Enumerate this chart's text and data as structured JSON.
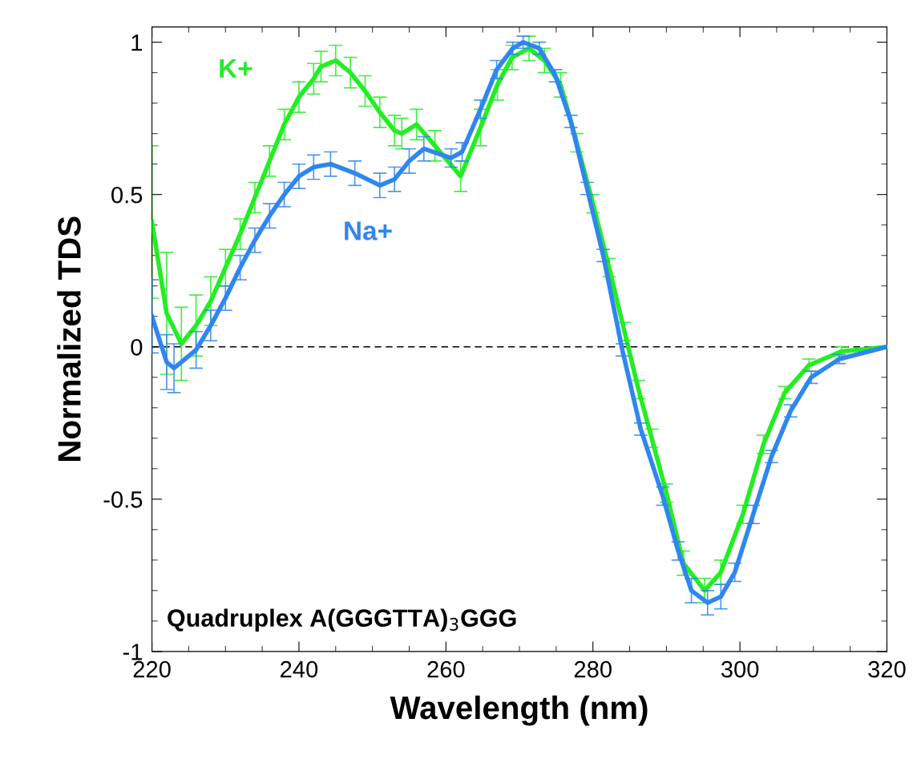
{
  "chart_data": {
    "type": "line",
    "xlabel": "Wavelength (nm)",
    "ylabel": "Normalized TDS",
    "xlim": [
      220,
      320
    ],
    "xticks": [
      220,
      240,
      260,
      280,
      300,
      320
    ],
    "ylim": [
      -1,
      1.05
    ],
    "yticks": [
      -1,
      -0.5,
      0,
      0.5,
      1
    ],
    "grid": false,
    "legend": false,
    "marker": "none",
    "line_style": "solid",
    "ref_lines": [
      {
        "axis": "y",
        "value": 0,
        "color": "#000000",
        "line_style": "dashed"
      }
    ],
    "annotations": [
      "Quadruplex A(GGGTTA)$_{3}$GGG"
    ],
    "series": [
      {
        "name": "K+",
        "color": "#22ee22",
        "x": [
          220,
          222,
          224,
          226,
          228,
          230,
          232,
          234,
          236,
          238,
          240,
          242,
          243,
          245,
          247,
          249,
          251,
          253,
          254,
          256,
          258.5,
          262,
          264.7,
          267,
          269,
          271.3,
          273.4,
          275.6,
          277.8,
          280,
          282.2,
          284.3,
          286.2,
          288,
          290,
          292.3,
          295.2,
          297.4,
          300.4,
          303.2,
          306.1,
          309.4,
          313.8,
          320
        ],
        "values": [
          0.41,
          0.11,
          0.01,
          0.07,
          0.15,
          0.26,
          0.37,
          0.49,
          0.61,
          0.73,
          0.82,
          0.88,
          0.92,
          0.94,
          0.9,
          0.84,
          0.77,
          0.71,
          0.7,
          0.73,
          0.66,
          0.56,
          0.72,
          0.86,
          0.95,
          0.98,
          0.94,
          0.86,
          0.67,
          0.47,
          0.26,
          0.05,
          -0.14,
          -0.3,
          -0.48,
          -0.71,
          -0.8,
          -0.74,
          -0.55,
          -0.32,
          -0.15,
          -0.06,
          -0.015,
          0
        ],
        "errors": [
          0.25,
          0.2,
          0.12,
          0.1,
          0.08,
          0.06,
          0.05,
          0.05,
          0.05,
          0.05,
          0.05,
          0.05,
          0.05,
          0.05,
          0.05,
          0.05,
          0.05,
          0.05,
          0.05,
          0.05,
          0.05,
          0.05,
          0.06,
          0.05,
          0.04,
          0.04,
          0.04,
          0.04,
          0.03,
          0.03,
          0.03,
          0.03,
          0.03,
          0.03,
          0.03,
          0.04,
          0.04,
          0.04,
          0.03,
          0.03,
          0.02,
          0.02,
          0.015,
          null
        ]
      },
      {
        "name": "Na+",
        "color": "#2f86f0",
        "x": [
          220,
          222,
          223,
          226,
          228,
          230,
          232,
          234,
          236,
          238,
          240,
          242,
          244.3,
          247.6,
          251,
          253,
          255,
          257,
          260.7,
          262.2,
          264.7,
          266.9,
          269.1,
          270.5,
          272.7,
          274.9,
          277,
          279.2,
          281.4,
          284,
          286.5,
          289.5,
          291.6,
          293.4,
          295.6,
          297.4,
          299.3,
          301.8,
          304.3,
          306.9,
          309.7,
          313.5,
          320
        ],
        "values": [
          0.1,
          -0.05,
          -0.07,
          -0.01,
          0.07,
          0.16,
          0.26,
          0.35,
          0.43,
          0.5,
          0.56,
          0.59,
          0.6,
          0.57,
          0.53,
          0.55,
          0.61,
          0.65,
          0.62,
          0.64,
          0.78,
          0.91,
          0.98,
          1.0,
          0.98,
          0.89,
          0.74,
          0.52,
          0.3,
          -0.01,
          -0.27,
          -0.49,
          -0.67,
          -0.8,
          -0.84,
          -0.82,
          -0.74,
          -0.55,
          -0.36,
          -0.21,
          -0.1,
          -0.04,
          0
        ],
        "errors": [
          0.12,
          0.09,
          0.08,
          0.06,
          0.05,
          0.04,
          0.04,
          0.04,
          0.04,
          0.04,
          0.04,
          0.04,
          0.04,
          0.04,
          0.04,
          0.04,
          0.04,
          0.04,
          0.03,
          0.03,
          0.03,
          0.03,
          0.02,
          0.02,
          0.02,
          0.02,
          0.02,
          0.02,
          0.02,
          0.02,
          0.02,
          0.03,
          0.03,
          0.04,
          0.04,
          0.04,
          0.03,
          0.03,
          0.02,
          0.02,
          0.02,
          0.015,
          null
        ]
      }
    ]
  }
}
